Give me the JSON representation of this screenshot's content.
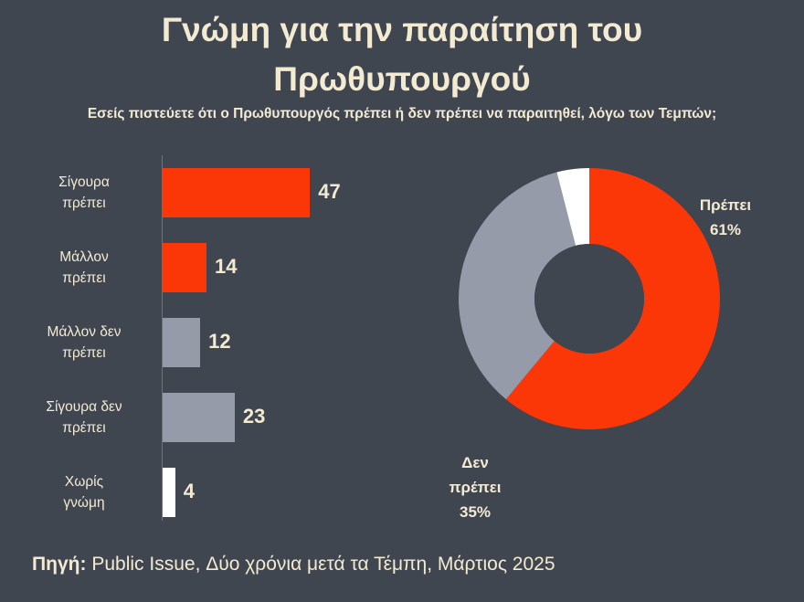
{
  "title_line1": "Γνώμη για την παραίτηση του",
  "title_line2": "Πρωθυπουργού",
  "subtitle": "Εσείς πιστεύετε ότι ο Πρωθυπουργός πρέπει ή δεν πρέπει να παραιτηθεί, λόγω των Τεμπών;",
  "source_label": "Πηγή:",
  "source_text": "Public Issue, Δύο χρόνια μετά τα Τέμπη, Μάρτιος 2025",
  "colors": {
    "red": "#fb3607",
    "gray": "#959ba8",
    "white": "#ffffff",
    "background": "#404650",
    "text": "#f3ead2"
  },
  "chart_data": [
    {
      "type": "bar",
      "orientation": "horizontal",
      "categories": [
        [
          "Σίγουρα",
          "πρέπει"
        ],
        [
          "Μάλλον",
          "πρέπει"
        ],
        [
          "Μάλλον δεν",
          "πρέπει"
        ],
        [
          "Σίγουρα δεν",
          "πρέπει"
        ],
        [
          "Χωρίς",
          "γνώμη"
        ]
      ],
      "values": [
        47,
        14,
        12,
        23,
        4
      ],
      "value_labels": [
        "47",
        "14",
        "12",
        "23",
        "4"
      ],
      "bar_colors": [
        "red",
        "red",
        "gray",
        "gray",
        "white"
      ],
      "xlim": [
        0,
        50
      ]
    },
    {
      "type": "pie",
      "style": "donut",
      "start_angle_deg": 0,
      "slices": [
        {
          "name": "Πρέπει",
          "value": 61,
          "label": [
            "Πρέπει",
            "61%"
          ],
          "color": "red"
        },
        {
          "name": "Δεν πρέπει",
          "value": 35,
          "label": [
            "Δεν",
            "πρέπει",
            "35%"
          ],
          "color": "gray"
        },
        {
          "name": "Χωρίς γνώμη",
          "value": 4,
          "label": null,
          "color": "white"
        }
      ]
    }
  ]
}
